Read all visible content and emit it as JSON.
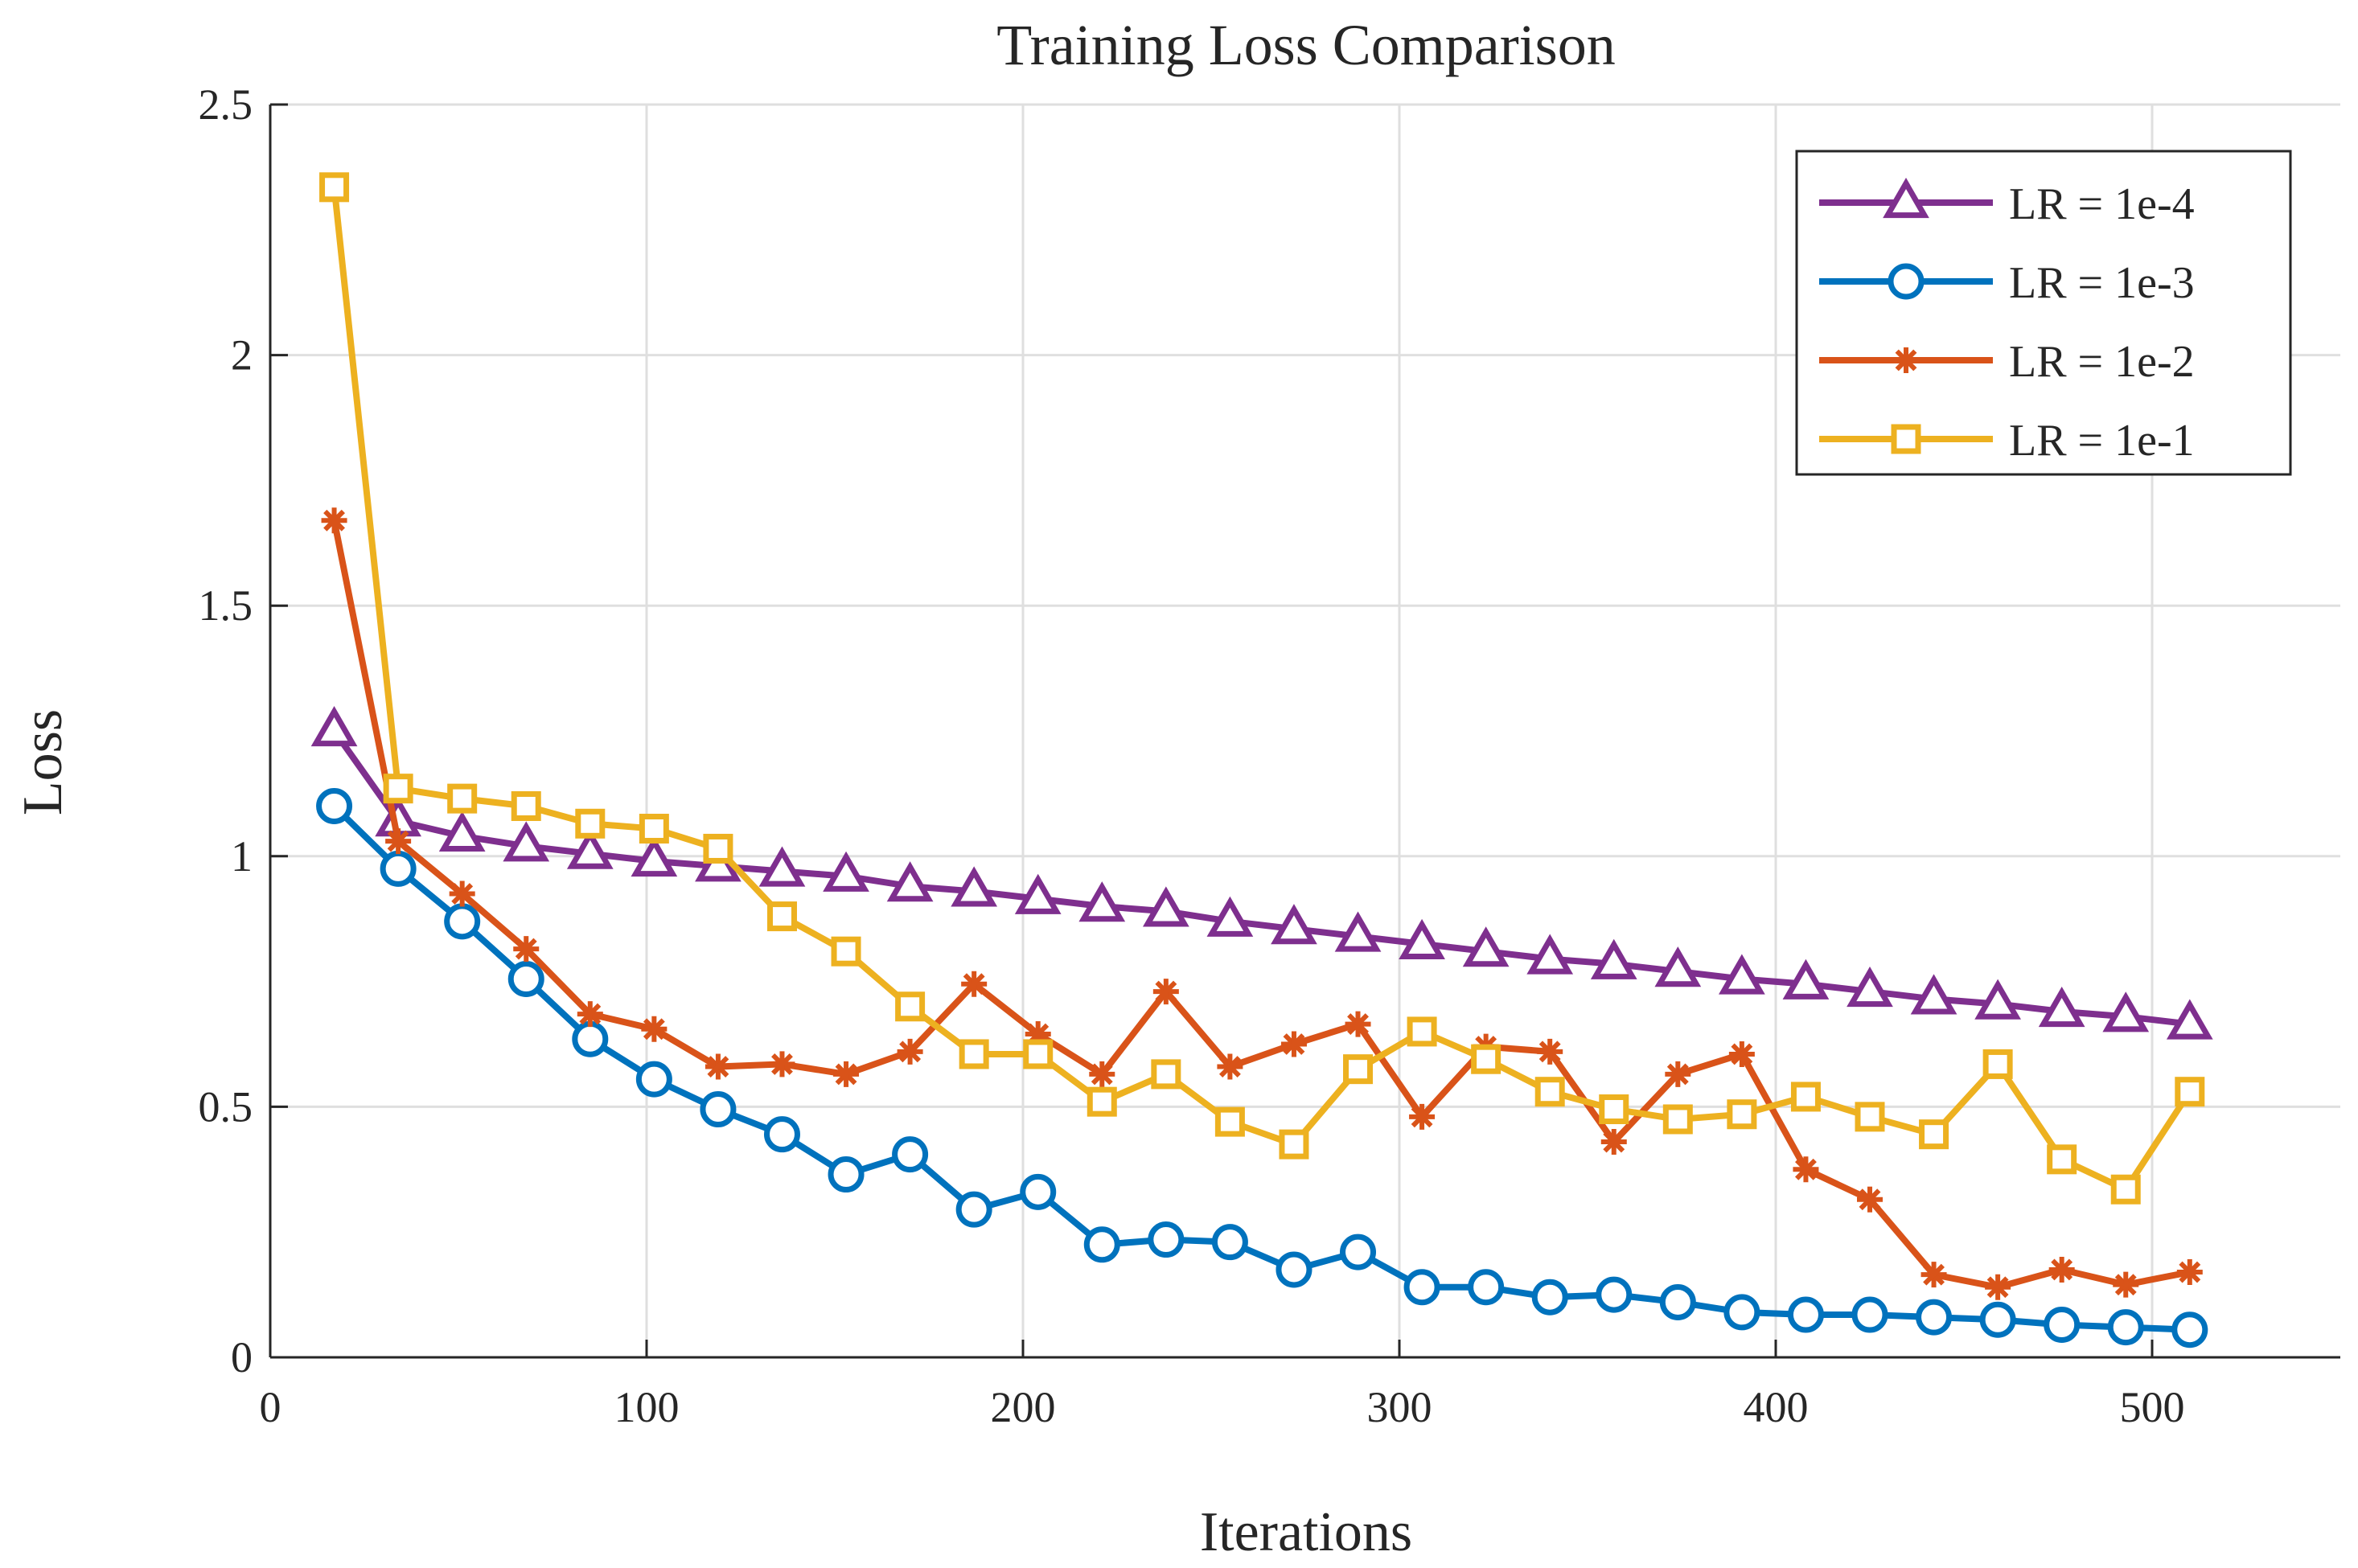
{
  "chart_data": {
    "type": "line",
    "title": "Training Loss Comparison",
    "xlabel": "Iterations",
    "ylabel": "Loss",
    "xlim": [
      0,
      550
    ],
    "ylim": [
      0,
      2.5
    ],
    "xticks": [
      0,
      100,
      200,
      300,
      400,
      500
    ],
    "yticks": [
      0,
      0.5,
      1,
      1.5,
      2,
      2.5
    ],
    "xtick_labels": [
      "0",
      "100",
      "200",
      "300",
      "400",
      "500"
    ],
    "ytick_labels": [
      "0",
      "0.5",
      "1",
      "1.5",
      "2",
      "2.5"
    ],
    "grid": true,
    "legend_position": "top-right",
    "x": [
      17,
      34,
      51,
      68,
      85,
      102,
      119,
      136,
      153,
      170,
      187,
      204,
      221,
      238,
      255,
      272,
      289,
      306,
      323,
      340,
      357,
      374,
      391,
      408,
      425,
      442,
      459,
      476,
      493,
      510
    ],
    "series": [
      {
        "name": "LR = 1e-4",
        "color": "#7E2F8E",
        "marker": "triangle",
        "values": [
          1.25,
          1.07,
          1.04,
          1.02,
          1.005,
          0.99,
          0.98,
          0.97,
          0.96,
          0.94,
          0.93,
          0.915,
          0.9,
          0.89,
          0.87,
          0.855,
          0.84,
          0.825,
          0.81,
          0.795,
          0.785,
          0.77,
          0.755,
          0.745,
          0.73,
          0.715,
          0.705,
          0.69,
          0.68,
          0.665
        ]
      },
      {
        "name": "LR = 1e-3",
        "color": "#0072BD",
        "marker": "circle",
        "values": [
          1.1,
          0.975,
          0.87,
          0.755,
          0.635,
          0.555,
          0.495,
          0.445,
          0.365,
          0.405,
          0.295,
          0.33,
          0.225,
          0.235,
          0.23,
          0.175,
          0.21,
          0.14,
          0.14,
          0.12,
          0.125,
          0.11,
          0.09,
          0.085,
          0.085,
          0.08,
          0.075,
          0.065,
          0.06,
          0.055
        ]
      },
      {
        "name": "LR = 1e-2",
        "color": "#D95319",
        "marker": "asterisk",
        "values": [
          1.67,
          1.03,
          0.925,
          0.815,
          0.685,
          0.655,
          0.58,
          0.585,
          0.565,
          0.61,
          0.745,
          0.645,
          0.565,
          0.73,
          0.58,
          0.625,
          0.665,
          0.48,
          0.62,
          0.61,
          0.43,
          0.565,
          0.605,
          0.375,
          0.315,
          0.165,
          0.14,
          0.175,
          0.145,
          0.17
        ]
      },
      {
        "name": "LR = 1e-1",
        "color": "#EDB120",
        "marker": "square",
        "values": [
          2.335,
          1.135,
          1.115,
          1.1,
          1.065,
          1.055,
          1.015,
          0.88,
          0.81,
          0.7,
          0.605,
          0.605,
          0.51,
          0.565,
          0.47,
          0.425,
          0.575,
          0.65,
          0.595,
          0.53,
          0.495,
          0.475,
          0.485,
          0.52,
          0.48,
          0.445,
          0.585,
          0.395,
          0.335,
          0.53
        ]
      }
    ]
  }
}
